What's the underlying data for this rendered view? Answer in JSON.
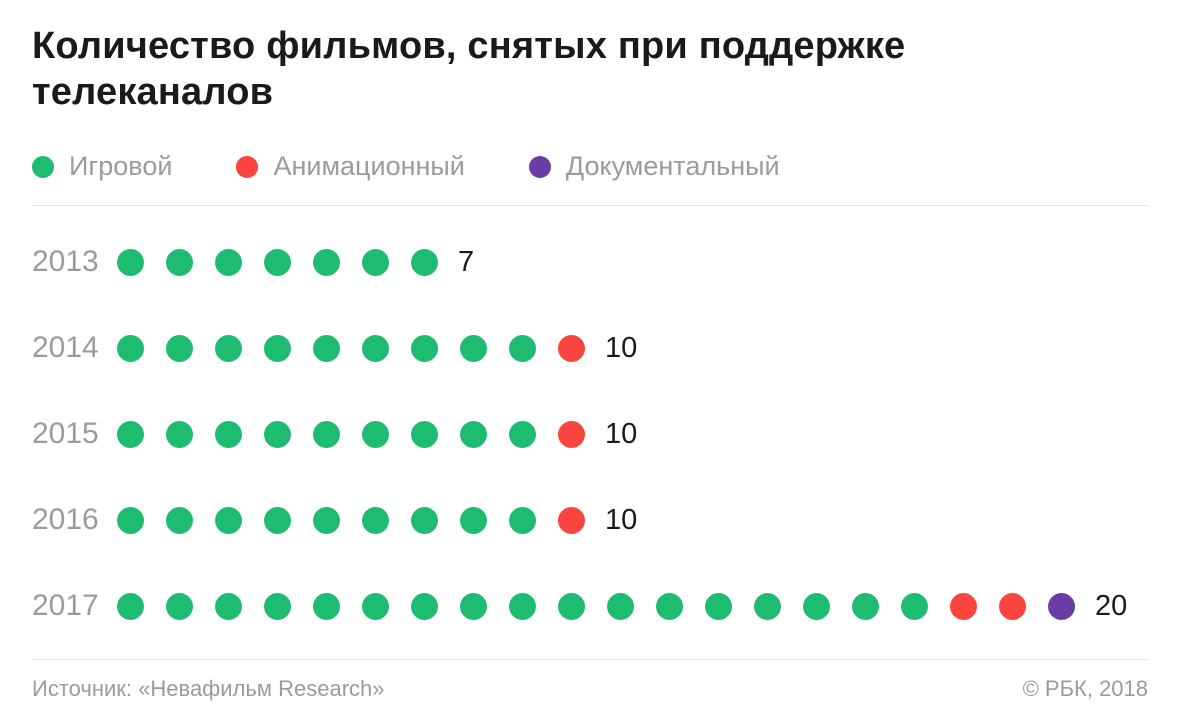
{
  "title": {
    "line1": "Количество фильмов, снятых при поддержке",
    "line2": "телеканалов",
    "full": "Количество фильмов, снятых при поддержке телеканалов"
  },
  "colors": {
    "green": "#1ebc70",
    "red": "#f9453e",
    "purple": "#6a3da6",
    "gray_text": "#9b9b9b",
    "dark_text": "#1a1a1a",
    "divider": "#e4e4e4"
  },
  "legend": [
    {
      "label": "Игровой",
      "color_key": "green"
    },
    {
      "label": "Анимационный",
      "color_key": "red"
    },
    {
      "label": "Документальный",
      "color_key": "purple"
    }
  ],
  "chart_data": {
    "type": "pictogram-dot",
    "title": "Количество фильмов, снятых при поддержке телеканалов",
    "series_names": [
      "Игровой",
      "Анимационный",
      "Документальный"
    ],
    "rows": [
      {
        "year": "2013",
        "total": 7,
        "counts": {
          "green": 7,
          "red": 0,
          "purple": 0
        }
      },
      {
        "year": "2014",
        "total": 10,
        "counts": {
          "green": 9,
          "red": 1,
          "purple": 0
        }
      },
      {
        "year": "2015",
        "total": 10,
        "counts": {
          "green": 9,
          "red": 1,
          "purple": 0
        }
      },
      {
        "year": "2016",
        "total": 10,
        "counts": {
          "green": 9,
          "red": 1,
          "purple": 0
        }
      },
      {
        "year": "2017",
        "total": 20,
        "counts": {
          "green": 17,
          "red": 2,
          "purple": 1
        }
      }
    ]
  },
  "footer": {
    "source": "Источник: «Невафильм Research»",
    "copyright": "© РБК, 2018"
  }
}
